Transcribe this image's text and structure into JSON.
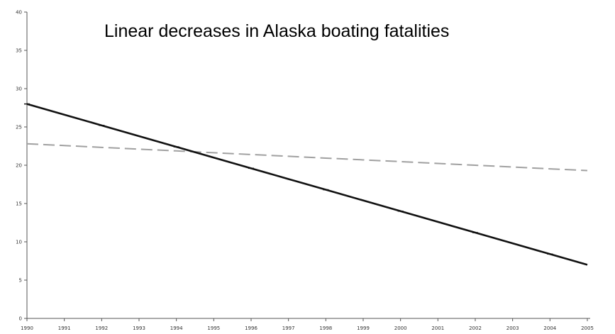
{
  "chart_data": {
    "type": "line",
    "title": "Linear decreases in Alaska boating fatalities",
    "xlabel": "",
    "ylabel": "",
    "x": [
      "1990",
      "1991",
      "1992",
      "1993",
      "1994",
      "1995",
      "1996",
      "1997",
      "1998",
      "1999",
      "2000",
      "2001",
      "2002",
      "2003",
      "2004",
      "2005"
    ],
    "ylim": [
      0,
      40
    ],
    "yticks": [
      "0",
      "5",
      "10",
      "15",
      "20",
      "25",
      "30",
      "35",
      "40"
    ],
    "grid": false,
    "legend": "none",
    "series": [
      {
        "style": "solid",
        "color": "#111111",
        "values": [
          28.0,
          26.6,
          25.2,
          23.8,
          22.4,
          21.0,
          19.6,
          18.2,
          16.8,
          15.4,
          14.0,
          12.6,
          11.2,
          9.8,
          8.4,
          7.0
        ]
      },
      {
        "style": "dashed",
        "color": "#a0a0a0",
        "values": [
          22.8,
          22.57,
          22.33,
          22.1,
          21.87,
          21.63,
          21.4,
          21.17,
          20.93,
          20.7,
          20.47,
          20.23,
          20.0,
          19.77,
          19.53,
          19.3
        ]
      }
    ]
  }
}
